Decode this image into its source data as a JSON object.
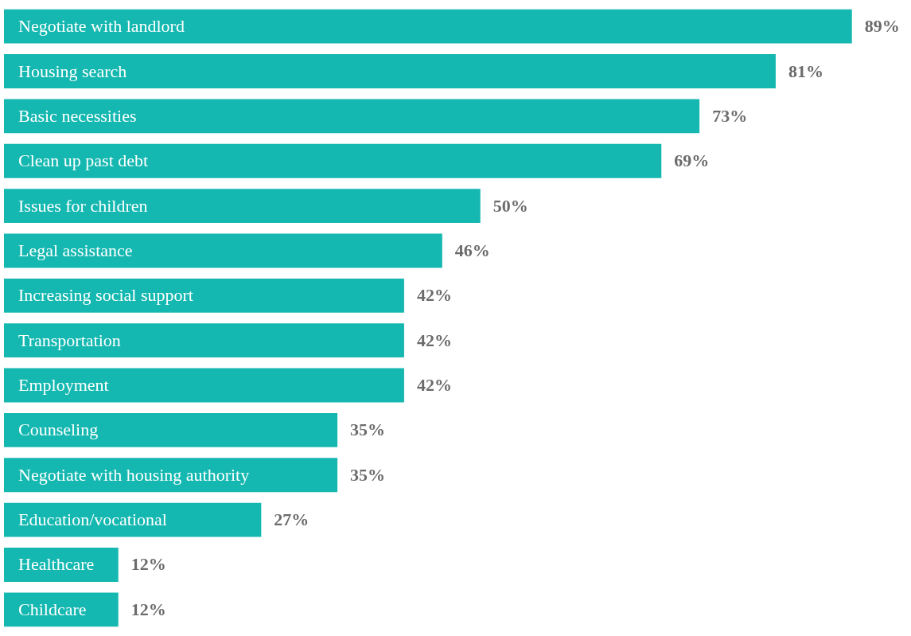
{
  "chart_data": {
    "type": "bar",
    "orientation": "horizontal",
    "categories": [
      "Negotiate with landlord",
      "Housing search",
      "Basic necessities",
      "Clean up past debt",
      "Issues for children",
      "Legal assistance",
      "Increasing social support",
      "Transportation",
      "Employment",
      "Counseling",
      "Negotiate with housing authority",
      "Education/vocational",
      "Healthcare",
      "Childcare"
    ],
    "values": [
      89,
      81,
      73,
      69,
      50,
      46,
      42,
      42,
      42,
      35,
      35,
      27,
      12,
      12
    ],
    "value_labels": [
      "89%",
      "81%",
      "73%",
      "69%",
      "50%",
      "46%",
      "42%",
      "42%",
      "42%",
      "35%",
      "35%",
      "27%",
      "12%",
      "12%"
    ],
    "color": "#14b8b0"
  }
}
